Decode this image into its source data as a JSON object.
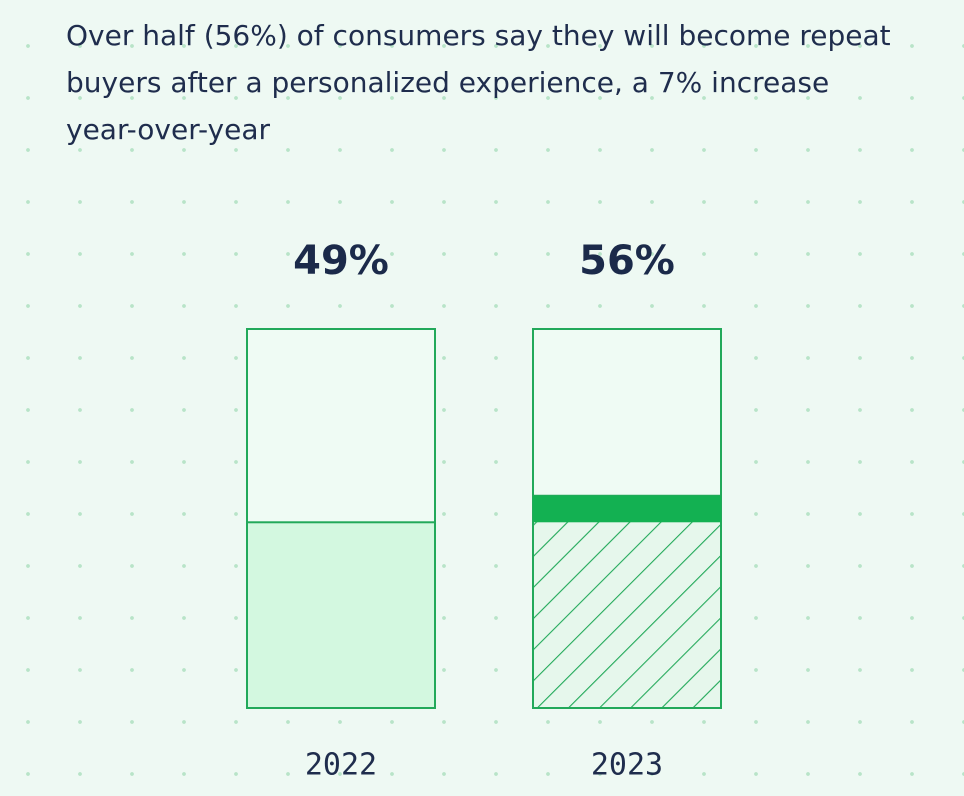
{
  "chart_data": {
    "type": "bar",
    "title": "Over half (56%) of consumers say they will become repeat buyers after a personalized experience, a 7% increase year-over-year",
    "categories": [
      "2022",
      "2023"
    ],
    "values": [
      49,
      56
    ],
    "value_labels": [
      "49%",
      "56%"
    ],
    "ylim": [
      0,
      100
    ],
    "colors": {
      "fill": "#d3f8e0",
      "outline": "#22a95a",
      "increase": "#13b152"
    }
  }
}
